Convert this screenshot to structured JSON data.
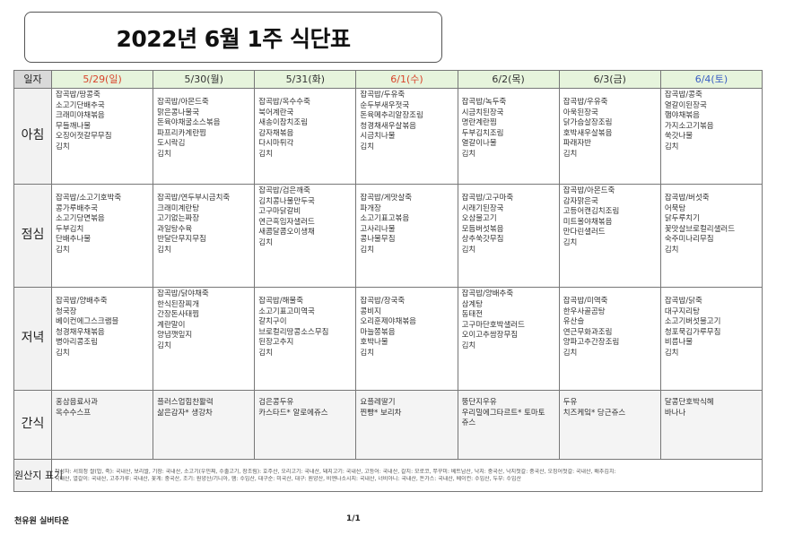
{
  "title": "2022년 6월 1주 식단표",
  "header_label": "일자",
  "days": [
    {
      "date": "5/29(일)",
      "color": "#d9442b"
    },
    {
      "date": "5/30(월)",
      "color": "#333333"
    },
    {
      "date": "5/31(화)",
      "color": "#333333"
    },
    {
      "date": "6/1(수)",
      "color": "#d9442b"
    },
    {
      "date": "6/2(목)",
      "color": "#333333"
    },
    {
      "date": "6/3(금)",
      "color": "#333333"
    },
    {
      "date": "6/4(토)",
      "color": "#3b5fc4"
    }
  ],
  "meals": [
    {
      "label": "아침",
      "cells": [
        [
          "잡곡밥/땅콩죽",
          "소고기단배추국",
          "크래미야채볶음",
          "무들깨나물",
          "오징어젓갈무무침",
          "김치"
        ],
        [
          "잡곡밥/아몬드죽",
          "맑은콩나물국",
          "돈육야채굴소스볶음",
          "파프리카계란찜",
          "도시락김",
          "김치"
        ],
        [
          "잡곡밥/옥수수죽",
          "북어계란국",
          "새송이참치조림",
          "감자채볶음",
          "다시마튀각",
          "김치"
        ],
        [
          "잡곡밥/두유죽",
          "순두부새우젓국",
          "돈육메추리알장조림",
          "청경채새우살볶음",
          "시금치나물",
          "김치"
        ],
        [
          "잡곡밥/녹두죽",
          "시금치된장국",
          "명란계란찜",
          "두부김치조림",
          "열갈이나물",
          "김치"
        ],
        [
          "잡곡밥/우유죽",
          "아욱된장국",
          "닭가슴살장조림",
          "호박새우살볶음",
          "파래자반",
          "김치"
        ],
        [
          "잡곡밥/콩죽",
          "열갈이된장국",
          "햄야채볶음",
          "가지소고기볶음",
          "쑥갓나물",
          "김치"
        ]
      ]
    },
    {
      "label": "점심",
      "cells": [
        [
          "잡곡밥/소고기호박죽",
          "콩가루배추국",
          "소고기당면볶음",
          "두부김치",
          "단배추나물",
          "김치"
        ],
        [
          "잡곡밥/연두부시금치죽",
          "크래미계란탕",
          "고기없는짜장",
          "과일탕수육",
          "반달단무지무침",
          "김치"
        ],
        [
          "잡곡밥/검은깨죽",
          "김치콩나물만두국",
          "고구마닭갈비",
          "연근흑임자샐러드",
          "새콤달콤오이생채",
          "김치"
        ],
        [
          "잡곡밥/게맛살죽",
          "파개장",
          "소고기표고볶음",
          "고사리나물",
          "콩나물무침",
          "김치"
        ],
        [
          "잡곡밥/고구마죽",
          "시래기된장국",
          "오삼불고기",
          "모듬버섯볶음",
          "상추쑥갓무침",
          "김치"
        ],
        [
          "잡곡밥/아몬드죽",
          "감자맑은국",
          "고등어캔김치조림",
          "미트볼야채볶음",
          "만다린샐러드",
          "김치"
        ],
        [
          "잡곡밥/버섯죽",
          "어묵탕",
          "닭두루치기",
          "꽃맛살브로컬리샐러드",
          "숙주미나리무침",
          "김치"
        ]
      ]
    },
    {
      "label": "저녁",
      "cells": [
        [
          "잡곡밥/양배추죽",
          "청국장",
          "베이컨에그스크램블",
          "청경채우채볶음",
          "병아리콩조림",
          "김치"
        ],
        [
          "잡곡밥/닭야채죽",
          "한식된장찌개",
          "간장돈사태찜",
          "계란말이",
          "양념깻잎지",
          "김치"
        ],
        [
          "잡곡밥/해물죽",
          "소고기표고미역국",
          "갈치구이",
          "브로컬리땅콩소스무침",
          "된장고추지",
          "김치"
        ],
        [
          "잡곡밥/장국죽",
          "콩비지",
          "오리훈제야채볶음",
          "마늘쫑볶음",
          "호박나물",
          "김치"
        ],
        [
          "잡곡밥/양배추죽",
          "삼계탕",
          "동태전",
          "고구마단호박샐러드",
          "오이고추쌈장무침",
          "김치"
        ],
        [
          "잡곡밥/미역죽",
          "한우사골곰탕",
          "유산슬",
          "연근무화과조림",
          "양파고추간장조림",
          "김치"
        ],
        [
          "잡곡밥/닭죽",
          "대구지리탕",
          "소고기버섯불고기",
          "청포묵김가루무침",
          "비름나물",
          "김치"
        ]
      ]
    },
    {
      "label": "간식",
      "cells": [
        [
          "홍삼음료사과",
          "옥수수스프"
        ],
        [
          "플러스업힘찬활력",
          "삶은감자* 생강차"
        ],
        [
          "검은콩두유",
          "카스타드* 알로에쥬스"
        ],
        [
          "요플레딸기",
          "찐빵* 보리차"
        ],
        [
          "뚱단지우유",
          "우리밀에그타르트* 토마토",
          "쥬스"
        ],
        [
          "두유",
          "치즈케잌* 당근쥬스"
        ],
        [
          "달콩단호박식혜",
          "바나나"
        ]
      ]
    }
  ],
  "origin": {
    "label": "원산지 표기",
    "lines": [
      "작성자: 서희정  쌀(밥, 죽): 국내산, 보리쌀, 기장: 국내산, 소고기(우민찌, 수출고기, 장조림): 호주산, 오리고기: 국내산, 돼지고기: 국내산, 고등어: 국내산, 갈치: 모로코, 쭈꾸미: 베트남산, 낙지: 중국산, 낙지젓갈: 중국산, 오징어젓갈: 국내산, 배추김치:",
      "국내산, 열갈이: 국내산, 고추가루: 국내산, 꽃게: 중국산, 조기: 원양산/기니아, 햄: 수입산, 대구순: 미국산, 대구: 원양산, 비엔나소시지: 국내산, 너비아니: 국내산, 돈가스: 국내산, 베이컨: 수입산, 두부: 수입산"
    ]
  },
  "footer": {
    "organization": "천유원 실버타운",
    "page": "1/1"
  }
}
